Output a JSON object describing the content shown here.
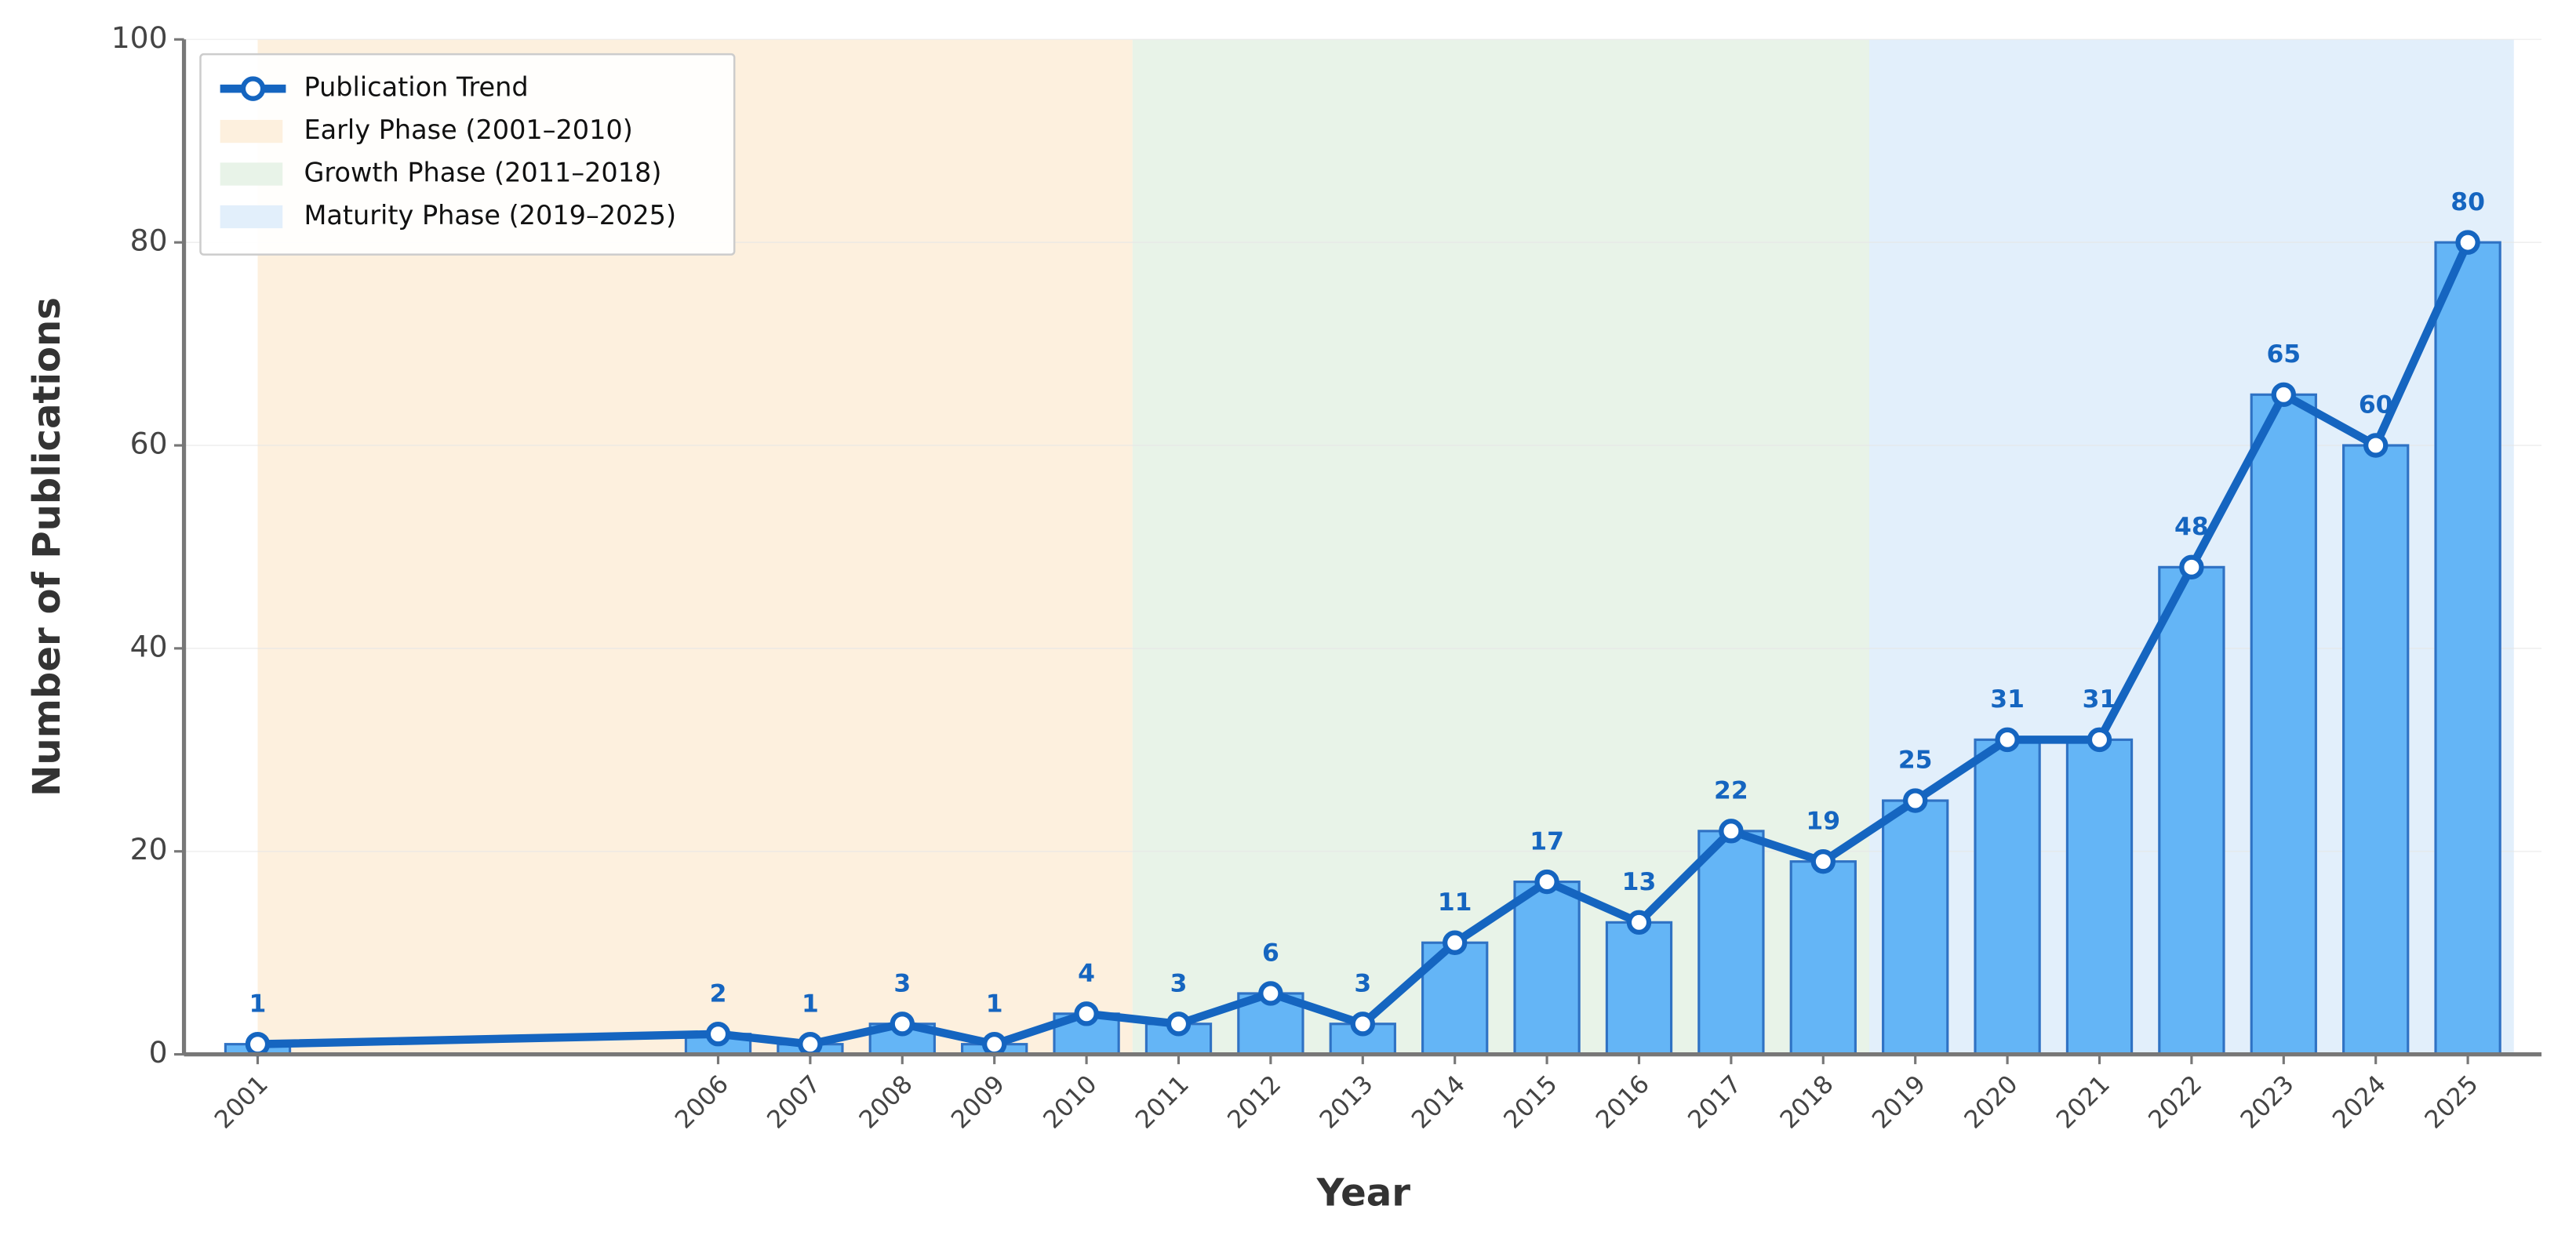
{
  "chart_data": {
    "type": "bar_line",
    "x_label": "Year",
    "y_label": "Number of Publications",
    "x": [
      2001,
      2006,
      2007,
      2008,
      2009,
      2010,
      2011,
      2012,
      2013,
      2014,
      2015,
      2016,
      2017,
      2018,
      2019,
      2020,
      2021,
      2022,
      2023,
      2024,
      2025
    ],
    "series": [
      {
        "name": "Publication Trend",
        "color": "#1565c0",
        "bar_color": "#64b5f6",
        "bar_edge_color": "#2f72c4",
        "values": [
          1,
          2,
          1,
          3,
          1,
          4,
          3,
          6,
          3,
          11,
          17,
          13,
          22,
          19,
          25,
          31,
          31,
          48,
          65,
          60,
          80
        ]
      }
    ],
    "regions": [
      {
        "label": "Early Phase (2001–2010)",
        "start": 2001,
        "end": 2010.5,
        "color": "#fdf0de"
      },
      {
        "label": "Growth Phase (2011–2018)",
        "start": 2010.5,
        "end": 2018.5,
        "color": "#e8f3e8"
      },
      {
        "label": "Maturity Phase (2019–2025)",
        "start": 2018.5,
        "end": 2025.5,
        "color": "#e2effb"
      }
    ],
    "xlim": [
      2000.2,
      2025.8
    ],
    "xticks": [
      2001,
      2006,
      2007,
      2008,
      2009,
      2010,
      2011,
      2012,
      2013,
      2014,
      2015,
      2016,
      2017,
      2018,
      2019,
      2020,
      2021,
      2022,
      2023,
      2024,
      2025
    ],
    "ylim": [
      0,
      100
    ],
    "yticks": [
      0,
      20,
      40,
      60,
      80,
      100
    ],
    "grid": true,
    "legend": "upper left"
  }
}
